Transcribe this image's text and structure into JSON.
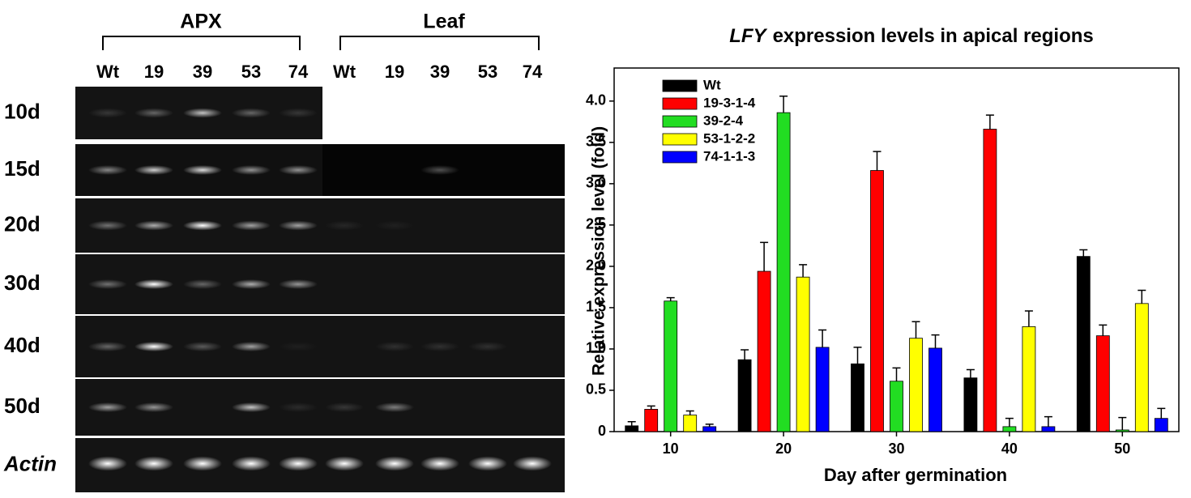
{
  "gel": {
    "groups": [
      "APX",
      "Leaf"
    ],
    "lanes": [
      "Wt",
      "19",
      "39",
      "53",
      "74",
      "Wt",
      "19",
      "39",
      "53",
      "74"
    ],
    "rows": [
      "10d",
      "15d",
      "20d",
      "30d",
      "40d",
      "50d",
      "Actin"
    ]
  },
  "chart_data": {
    "type": "bar",
    "title": {
      "italic": "LFY",
      "text": "expression levels in apical regions"
    },
    "xlabel": "Day after germination",
    "ylabel": "Relative expression level (fold)",
    "categories": [
      10,
      20,
      30,
      40,
      50
    ],
    "series": [
      {
        "name": "Wt",
        "color": "#000000",
        "values": [
          0.07,
          0.87,
          0.82,
          0.65,
          2.12
        ],
        "errors": [
          0.05,
          0.12,
          0.2,
          0.1,
          0.08
        ]
      },
      {
        "name": "19-3-1-4",
        "color": "#ff0000",
        "values": [
          0.27,
          1.94,
          3.16,
          3.66,
          1.16
        ],
        "errors": [
          0.04,
          0.35,
          0.23,
          0.17,
          0.13
        ]
      },
      {
        "name": "39-2-4",
        "color": "#22dd22",
        "values": [
          1.58,
          3.86,
          0.61,
          0.06,
          0.02
        ],
        "errors": [
          0.04,
          0.2,
          0.16,
          0.1,
          0.15
        ]
      },
      {
        "name": "53-1-2-2",
        "color": "#ffff00",
        "values": [
          0.2,
          1.87,
          1.13,
          1.27,
          1.55
        ],
        "errors": [
          0.05,
          0.15,
          0.2,
          0.19,
          0.16
        ]
      },
      {
        "name": "74-1-1-3",
        "color": "#0000ff",
        "values": [
          0.06,
          1.02,
          1.01,
          0.06,
          0.16
        ],
        "errors": [
          0.03,
          0.21,
          0.16,
          0.12,
          0.12
        ]
      }
    ],
    "ylim": [
      0,
      4.4
    ],
    "yticks": [
      0,
      0.5,
      {
        "value": 1,
        "label": "1.0"
      },
      1.5,
      {
        "value": 2,
        "label": "2.0"
      },
      2.5,
      {
        "value": 3,
        "label": "3.0"
      },
      3.5,
      {
        "value": 4,
        "label": "4.0"
      }
    ],
    "legend": "upper left"
  }
}
